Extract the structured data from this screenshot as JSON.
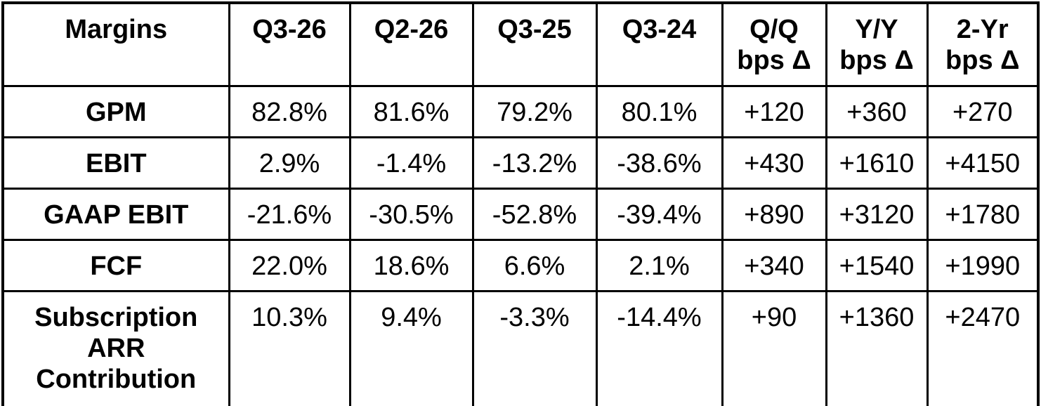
{
  "chart_data": {
    "type": "table",
    "title": "Margins",
    "columns": [
      "Margins",
      "Q3-26",
      "Q2-26",
      "Q3-25",
      "Q3-24",
      "Q/Q\nbps Δ",
      "Y/Y\nbps Δ",
      "2-Yr\nbps Δ"
    ],
    "rows": [
      {
        "label": "GPM",
        "values": [
          "82.8%",
          "81.6%",
          "79.2%",
          "80.1%",
          "+120",
          "+360",
          "+270"
        ]
      },
      {
        "label": "EBIT",
        "values": [
          "2.9%",
          "-1.4%",
          "-13.2%",
          "-38.6%",
          "+430",
          "+1610",
          "+4150"
        ]
      },
      {
        "label": "GAAP EBIT",
        "values": [
          "-21.6%",
          "-30.5%",
          "-52.8%",
          "-39.4%",
          "+890",
          "+3120",
          "+1780"
        ]
      },
      {
        "label": "FCF",
        "values": [
          "22.0%",
          "18.6%",
          "6.6%",
          "2.1%",
          "+340",
          "+1540",
          "+1990"
        ]
      },
      {
        "label": "Subscription\nARR\nContribution",
        "values": [
          "10.3%",
          "9.4%",
          "-3.3%",
          "-14.4%",
          "+90",
          "+1360",
          "+2470"
        ]
      }
    ],
    "colors": {
      "text": "#000000",
      "border": "#000000",
      "background": "#ffffff"
    }
  }
}
